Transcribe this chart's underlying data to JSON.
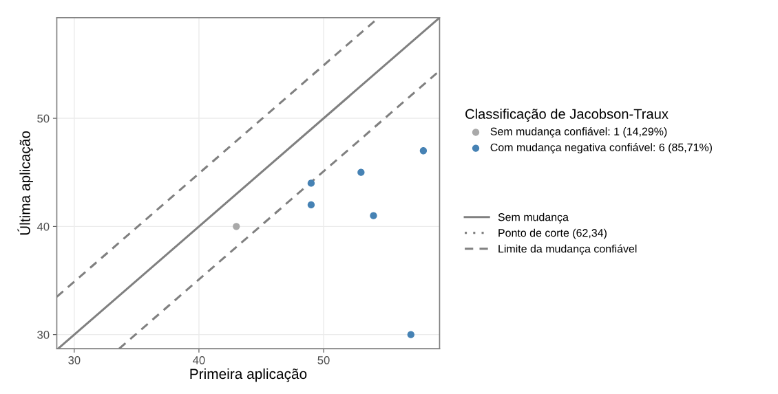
{
  "chart_data": {
    "type": "scatter",
    "xlabel": "Primeira aplicação",
    "ylabel": "Última aplicação",
    "xlim": [
      28.6,
      59.3
    ],
    "ylim": [
      28.7,
      59.3
    ],
    "xticks": [
      30,
      40,
      50
    ],
    "yticks": [
      30,
      40,
      50
    ],
    "grid": true,
    "legend": "right",
    "legend_title": "Classificação de Jacobson-Traux",
    "series": [
      {
        "name": "Sem mudança confiável: 1 (14,29%)",
        "marker": "circle",
        "color": "#a9a9a9",
        "x": [
          43
        ],
        "values": [
          40
        ]
      },
      {
        "name": "Com mudança negativa confiável: 6 (85,71%)",
        "marker": "circle",
        "color": "#4682b4",
        "x": [
          49,
          49,
          53,
          54,
          58,
          57
        ],
        "values": [
          44,
          42,
          45,
          41,
          47,
          30
        ]
      },
      {
        "type": "line",
        "name": "Sem mudança",
        "color": "#808080",
        "line_style": "solid",
        "x": [
          28.7,
          59.3
        ],
        "values": [
          28.7,
          59.3
        ]
      },
      {
        "type": "line",
        "name": "Ponto de corte (62,34)",
        "color": "#808080",
        "line_style": "dotted"
      },
      {
        "type": "line",
        "name": "Limite da mudança confiável",
        "color": "#808080",
        "line_style": "dashed",
        "x": [
          28.6,
          54.4,
          null,
          33.6,
          59.3
        ],
        "values": [
          33.5,
          59.3,
          null,
          28.7,
          54.4
        ]
      }
    ]
  }
}
